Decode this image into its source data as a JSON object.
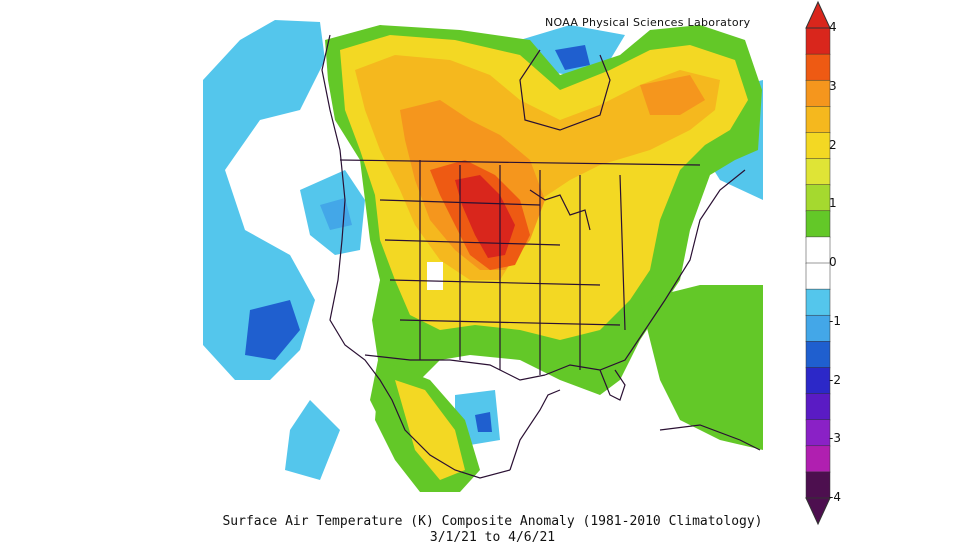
{
  "credit": "NOAA Physical Sciences Laboratory",
  "caption": {
    "line1": "Surface Air Temperature (K) Composite Anomaly (1981-2010 Climatology)",
    "line2": "3/1/21  to 4/6/21"
  },
  "colorbar": {
    "ticks": [
      "4",
      "3",
      "2",
      "1",
      "0",
      "-1",
      "-2",
      "-3",
      "-4"
    ],
    "bins": [
      "#d9261c",
      "#ee5a13",
      "#f5961d",
      "#f5b81e",
      "#f3d823",
      "#dfe436",
      "#a5d92f",
      "#63c828",
      "#ffffff",
      "#ffffff",
      "#54c6ec",
      "#43a7e8",
      "#1f5fcf",
      "#2c28c8",
      "#5a1bc4",
      "#8a21c6",
      "#b01fb0",
      "#4d0f4f"
    ]
  }
}
